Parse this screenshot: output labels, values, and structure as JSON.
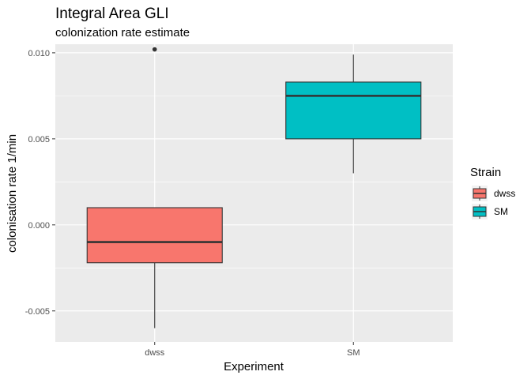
{
  "chart_data": {
    "type": "boxplot",
    "title": "Integral Area GLI",
    "subtitle": "colonization rate estimate",
    "xlabel": "Experiment",
    "ylabel": "colonisation rate 1/min",
    "categories": [
      "dwss",
      "SM"
    ],
    "ylim": [
      -0.0068,
      0.0105
    ],
    "yticks": [
      -0.005,
      0.0,
      0.005,
      0.01
    ],
    "ytick_labels": [
      "-0.005",
      "0.000",
      "0.005",
      "0.010"
    ],
    "grid": true,
    "legend": {
      "title": "Strain",
      "position": "right",
      "entries": [
        "dwss",
        "SM"
      ]
    },
    "series": [
      {
        "name": "dwss",
        "color": "#F8766D",
        "whisker_low": -0.006,
        "q1": -0.0022,
        "median": -0.001,
        "q3": 0.001,
        "whisker_high": 0.001,
        "outliers": [
          0.0102
        ]
      },
      {
        "name": "SM",
        "color": "#00BFC4",
        "whisker_low": 0.003,
        "q1": 0.005,
        "median": 0.0075,
        "q3": 0.0083,
        "whisker_high": 0.0099,
        "outliers": []
      }
    ],
    "panel_background": "#EBEBEB",
    "grid_color": "#FFFFFF"
  }
}
